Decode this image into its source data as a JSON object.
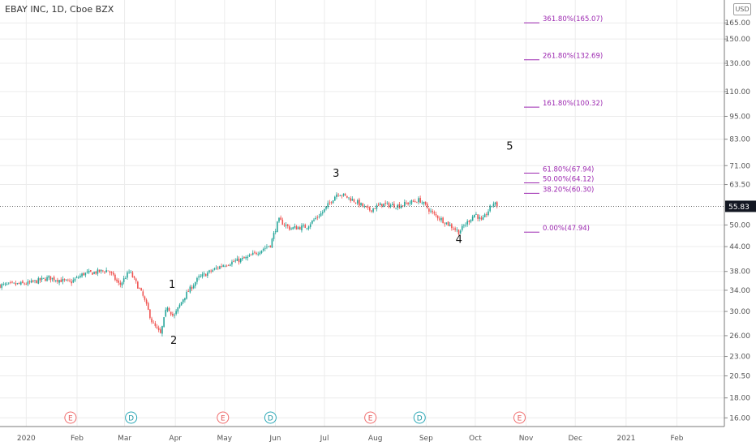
{
  "header": {
    "title": "EBAY INC, 1D, Cboe BZX",
    "currency_badge": "USD"
  },
  "colors": {
    "up": "#26a69a",
    "down": "#ef5350",
    "fib": "#9c27b0",
    "grid": "#ececec",
    "last_price_bg": "#131722"
  },
  "chart_data": {
    "type": "candlestick",
    "title": "EBAY INC, 1D, Cboe BZX",
    "y_scale": "log",
    "ylim": [
      15.2,
      188
    ],
    "y_ticks": [
      "165.00",
      "150.00",
      "130.00",
      "110.00",
      "95.00",
      "83.00",
      "71.00",
      "63.50",
      "55.83",
      "50.00",
      "44.00",
      "38.00",
      "34.00",
      "30.00",
      "26.00",
      "23.00",
      "20.50",
      "18.00",
      "16.00"
    ],
    "last_price": "55.83",
    "x_ticks": [
      "2020",
      "Feb",
      "Mar",
      "Apr",
      "May",
      "Jun",
      "Jul",
      "Aug",
      "Sep",
      "Oct",
      "Nov",
      "Dec",
      "2021",
      "Feb"
    ],
    "wave_labels": [
      {
        "label": "1",
        "date": "2020-03-30",
        "price": 34.5
      },
      {
        "label": "2",
        "date": "2020-03-31",
        "price": 24.8
      },
      {
        "label": "3",
        "date": "2020-07-08",
        "price": 66.5
      },
      {
        "label": "4",
        "date": "2020-09-21",
        "price": 45.0
      },
      {
        "label": "5",
        "date": "2020-10-22",
        "price": 78.0
      }
    ],
    "fib_levels": [
      {
        "label": "361.80%(165.07)",
        "value": 165.07
      },
      {
        "label": "261.80%(132.69)",
        "value": 132.69
      },
      {
        "label": "161.80%(100.32)",
        "value": 100.32
      },
      {
        "label": "61.80%(67.94)",
        "value": 67.94
      },
      {
        "label": "50.00%(64.12)",
        "value": 64.12
      },
      {
        "label": "38.20%(60.30)",
        "value": 60.3
      },
      {
        "label": "0.00%(47.94)",
        "value": 47.94
      }
    ],
    "events": [
      {
        "type": "E",
        "date": "2020-01-28"
      },
      {
        "type": "D",
        "date": "2020-03-05"
      },
      {
        "type": "E",
        "date": "2020-04-30"
      },
      {
        "type": "D",
        "date": "2020-05-29"
      },
      {
        "type": "E",
        "date": "2020-07-29"
      },
      {
        "type": "D",
        "date": "2020-08-28"
      },
      {
        "type": "E",
        "date": "2020-10-28"
      }
    ],
    "price_path": [
      [
        "2019-12-16",
        35.0
      ],
      [
        "2020-01-02",
        35.4
      ],
      [
        "2020-01-15",
        36.6
      ],
      [
        "2020-01-28",
        35.6
      ],
      [
        "2020-02-05",
        37.5
      ],
      [
        "2020-02-12",
        37.8
      ],
      [
        "2020-02-20",
        38.3
      ],
      [
        "2020-02-27",
        35.0
      ],
      [
        "2020-03-04",
        38.0
      ],
      [
        "2020-03-12",
        33.0
      ],
      [
        "2020-03-18",
        28.0
      ],
      [
        "2020-03-23",
        26.2
      ],
      [
        "2020-03-27",
        31.0
      ],
      [
        "2020-03-31",
        29.0
      ],
      [
        "2020-04-06",
        32.5
      ],
      [
        "2020-04-15",
        36.5
      ],
      [
        "2020-04-30",
        39.5
      ],
      [
        "2020-05-15",
        41.2
      ],
      [
        "2020-05-29",
        44.5
      ],
      [
        "2020-06-03",
        51.5
      ],
      [
        "2020-06-10",
        49.0
      ],
      [
        "2020-06-20",
        49.5
      ],
      [
        "2020-06-30",
        54.0
      ],
      [
        "2020-07-09",
        60.5
      ],
      [
        "2020-07-20",
        57.5
      ],
      [
        "2020-07-28",
        54.5
      ],
      [
        "2020-08-05",
        56.5
      ],
      [
        "2020-08-15",
        56.0
      ],
      [
        "2020-08-28",
        58.0
      ],
      [
        "2020-09-05",
        53.5
      ],
      [
        "2020-09-21",
        48.0
      ],
      [
        "2020-10-01",
        53.5
      ],
      [
        "2020-10-05",
        51.0
      ],
      [
        "2020-10-12",
        57.0
      ],
      [
        "2020-10-15",
        55.83
      ]
    ]
  }
}
